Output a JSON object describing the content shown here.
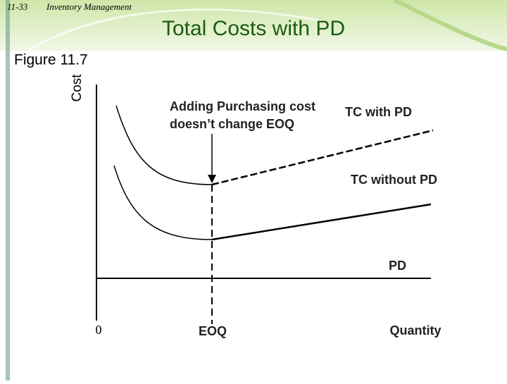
{
  "header": {
    "page": "11-33",
    "section": "Inventory Management",
    "title": "Total Costs with PD"
  },
  "figure": {
    "label": "Figure 11.7",
    "y_axis_label": "Cost",
    "annotation": [
      "Adding Purchasing cost",
      "doesn’t change EOQ"
    ],
    "curves": [
      "TC with PD",
      "TC without PD",
      "PD"
    ],
    "x_labels": [
      "0",
      "EOQ",
      "Quantity"
    ]
  }
}
